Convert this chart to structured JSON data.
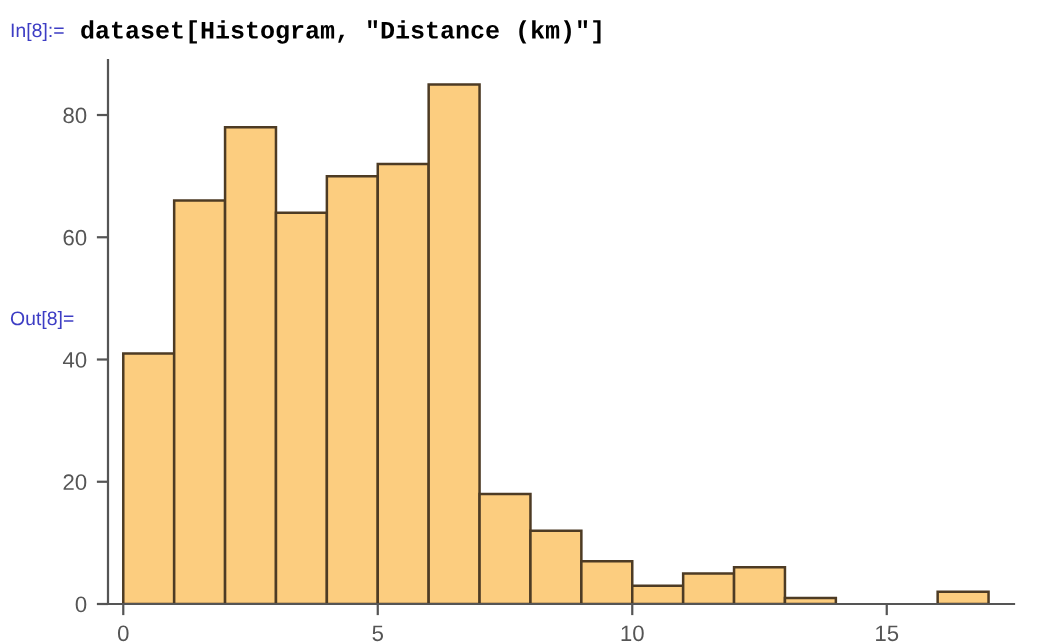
{
  "chart_data": {
    "type": "histogram",
    "bins": [
      0,
      1,
      2,
      3,
      4,
      5,
      6,
      7,
      8,
      9,
      10,
      11,
      12,
      13,
      14,
      15,
      16,
      17
    ],
    "values": [
      41,
      66,
      78,
      64,
      70,
      72,
      85,
      18,
      12,
      7,
      3,
      5,
      6,
      1,
      0,
      0,
      2
    ],
    "color": "#fccd7f",
    "xlim": [
      -0.3,
      17.5
    ],
    "ylim": [
      0,
      89
    ],
    "xticks": [
      0,
      5,
      10,
      15
    ],
    "yticks": [
      0,
      20,
      40,
      60,
      80
    ],
    "grid": false,
    "annotations": [
      "In[8]:=",
      "dataset[Histogram, \"Distance (km)\"]",
      "Out[8]="
    ]
  }
}
